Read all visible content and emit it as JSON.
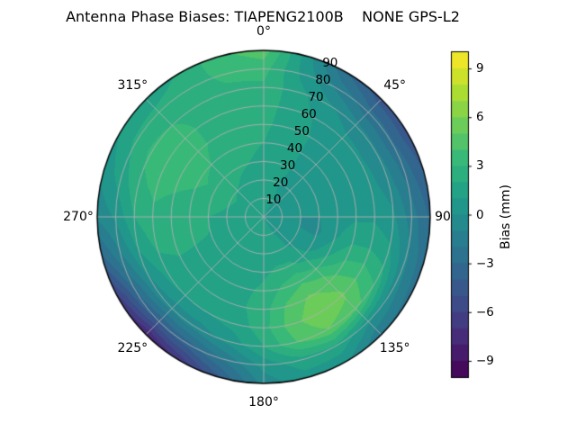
{
  "title": "Antenna Phase Biases: TIAPENG2100B    NONE GPS-L2",
  "chart_data": {
    "type": "heatmap",
    "projection": "polar",
    "theta_zero_location": "top",
    "theta_direction": "clockwise",
    "radial_range": [
      0,
      90
    ],
    "angular_ticks": [
      {
        "angle_deg": 0,
        "label": "0°"
      },
      {
        "angle_deg": 45,
        "label": "45°"
      },
      {
        "angle_deg": 90,
        "label": "90"
      },
      {
        "angle_deg": 135,
        "label": "135°"
      },
      {
        "angle_deg": 180,
        "label": "180°"
      },
      {
        "angle_deg": 225,
        "label": "225°"
      },
      {
        "angle_deg": 270,
        "label": "270°"
      },
      {
        "angle_deg": 315,
        "label": "315°"
      }
    ],
    "radial_ticks": {
      "label_angle_deg": 22.5,
      "ticks": [
        {
          "r": 10,
          "label": "10"
        },
        {
          "r": 20,
          "label": "20"
        },
        {
          "r": 30,
          "label": "30"
        },
        {
          "r": 40,
          "label": "40"
        },
        {
          "r": 50,
          "label": "50"
        },
        {
          "r": 60,
          "label": "60"
        },
        {
          "r": 70,
          "label": "70"
        },
        {
          "r": 80,
          "label": "80"
        },
        {
          "r": 90,
          "label": "90"
        }
      ]
    },
    "grid_color": "#b0b0b0",
    "outline_color": "#000000",
    "colormap": "viridis",
    "colormap_stops": [
      "#440154",
      "#482878",
      "#3e4a89",
      "#31688e",
      "#26828e",
      "#1f9e89",
      "#35b779",
      "#6dcd59",
      "#b4de2c",
      "#fde725"
    ],
    "levels": {
      "min": -10,
      "max": 10,
      "step": 1
    },
    "azimuth_deg": [
      0,
      15,
      30,
      45,
      60,
      75,
      90,
      105,
      120,
      135,
      150,
      165,
      180,
      195,
      210,
      225,
      240,
      255,
      270,
      285,
      300,
      315,
      330,
      345
    ],
    "zenith_deg": [
      0,
      10,
      20,
      30,
      40,
      50,
      60,
      70,
      80,
      90
    ],
    "bias_mm": [
      [
        1.0,
        1.0,
        1.0,
        1.0,
        1.0,
        1.0,
        1.0,
        1.0,
        1.0,
        1.0,
        1.0,
        1.0,
        1.0,
        1.0,
        1.0,
        1.0,
        1.0,
        1.0,
        1.0,
        1.0,
        1.0,
        1.0,
        1.0,
        1.0
      ],
      [
        1.3,
        1.2,
        1.0,
        0.8,
        0.6,
        0.4,
        0.3,
        0.3,
        0.5,
        0.8,
        1.0,
        1.2,
        1.3,
        1.3,
        1.3,
        1.4,
        1.5,
        1.5,
        1.5,
        1.6,
        1.6,
        1.5,
        1.4,
        1.3
      ],
      [
        1.5,
        1.2,
        0.9,
        0.7,
        0.4,
        0.1,
        0.0,
        0.0,
        0.3,
        0.8,
        1.3,
        1.5,
        1.5,
        1.5,
        1.5,
        1.6,
        1.8,
        1.8,
        1.8,
        2.0,
        2.2,
        2.0,
        1.8,
        1.6
      ],
      [
        1.8,
        1.4,
        1.0,
        0.6,
        0.3,
        0.1,
        0.0,
        -0.2,
        0.4,
        1.4,
        2.2,
        2.2,
        1.8,
        1.6,
        1.5,
        1.6,
        1.8,
        2.0,
        2.0,
        2.4,
        2.8,
        2.6,
        2.2,
        2.0
      ],
      [
        2.0,
        1.5,
        1.0,
        0.6,
        0.4,
        0.4,
        0.5,
        0.8,
        1.8,
        3.2,
        3.8,
        3.2,
        2.2,
        1.8,
        1.6,
        1.6,
        1.8,
        2.2,
        2.4,
        2.8,
        3.2,
        3.0,
        2.6,
        2.2
      ],
      [
        2.2,
        1.6,
        1.0,
        0.6,
        0.4,
        0.5,
        0.8,
        1.8,
        3.2,
        4.6,
        5.2,
        4.2,
        2.6,
        1.8,
        1.5,
        1.5,
        1.8,
        2.4,
        2.6,
        3.0,
        3.4,
        3.2,
        2.8,
        2.4
      ],
      [
        2.4,
        1.6,
        0.8,
        0.3,
        0.2,
        0.4,
        0.8,
        1.8,
        3.6,
        5.2,
        5.8,
        4.6,
        2.6,
        1.4,
        1.0,
        1.0,
        1.4,
        2.2,
        2.8,
        3.2,
        3.4,
        3.2,
        2.8,
        2.6
      ],
      [
        2.8,
        1.4,
        0.2,
        -0.6,
        -0.8,
        -0.5,
        0.2,
        1.2,
        2.8,
        4.4,
        5.0,
        4.0,
        2.0,
        0.4,
        -0.5,
        -0.6,
        -0.2,
        1.0,
        2.0,
        2.8,
        3.2,
        3.0,
        2.8,
        2.8
      ],
      [
        3.4,
        0.8,
        -1.2,
        -2.6,
        -2.8,
        -2.2,
        -1.5,
        -0.8,
        -0.5,
        0.2,
        1.8,
        1.6,
        0.4,
        -1.8,
        -3.4,
        -4.0,
        -3.0,
        -1.2,
        0.2,
        1.4,
        2.2,
        2.4,
        2.6,
        3.2
      ],
      [
        4.6,
        0.5,
        -3.0,
        -4.6,
        -4.8,
        -4.0,
        -3.2,
        -2.8,
        -2.4,
        -2.0,
        0.2,
        0.6,
        -0.6,
        -4.0,
        -6.8,
        -8.2,
        -6.5,
        -3.4,
        -0.8,
        0.2,
        1.0,
        1.2,
        2.2,
        3.8
      ]
    ],
    "colorbar": {
      "label": "Bias (mm)",
      "ticks": [
        {
          "value": 9,
          "label": "9"
        },
        {
          "value": 6,
          "label": "6"
        },
        {
          "value": 3,
          "label": "3"
        },
        {
          "value": 0,
          "label": "0"
        },
        {
          "value": -3,
          "label": "−3"
        },
        {
          "value": -6,
          "label": "−6"
        },
        {
          "value": -9,
          "label": "−9"
        }
      ]
    }
  }
}
